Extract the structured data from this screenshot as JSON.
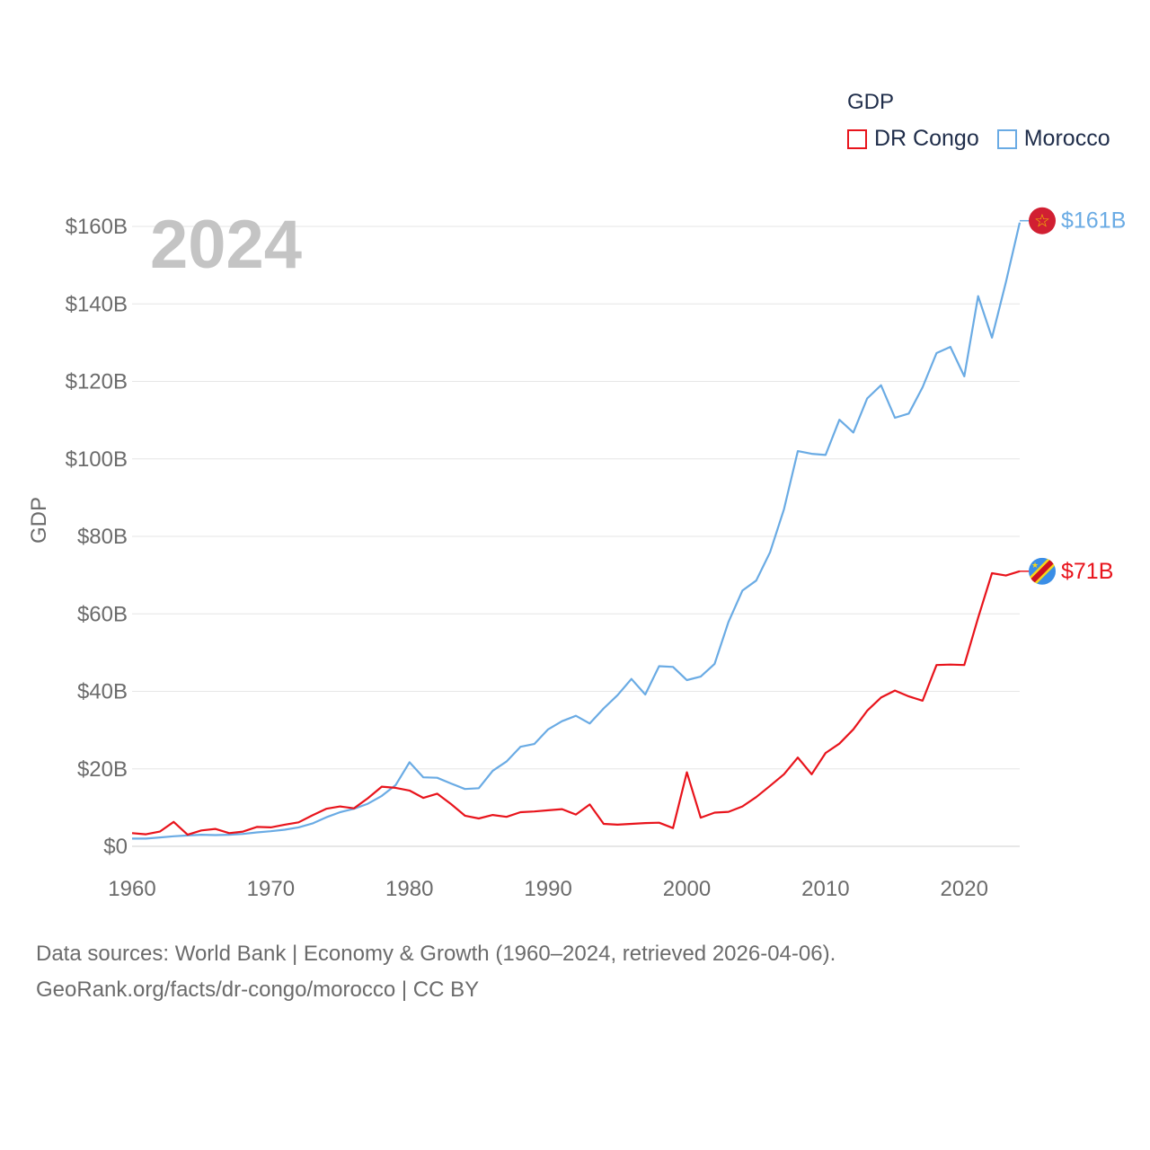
{
  "chart_data": {
    "type": "line",
    "title": "",
    "watermark_label": "2024",
    "ylabel": "GDP",
    "xlabel": "",
    "xlim": [
      1960,
      2024
    ],
    "ylim": [
      0,
      160
    ],
    "y_unit": "billion USD",
    "x_ticks": [
      1960,
      1970,
      1980,
      1990,
      2000,
      2010,
      2020
    ],
    "y_ticks": [
      {
        "value": 0,
        "label": "$0"
      },
      {
        "value": 20,
        "label": "$20B"
      },
      {
        "value": 40,
        "label": "$40B"
      },
      {
        "value": 60,
        "label": "$60B"
      },
      {
        "value": 80,
        "label": "$80B"
      },
      {
        "value": 100,
        "label": "$100B"
      },
      {
        "value": 120,
        "label": "$120B"
      },
      {
        "value": 140,
        "label": "$140B"
      },
      {
        "value": 160,
        "label": "$160B"
      }
    ],
    "grid": true,
    "legend": {
      "title": "GDP",
      "placement": "top-right"
    },
    "x": [
      1960,
      1961,
      1962,
      1963,
      1964,
      1965,
      1966,
      1967,
      1968,
      1969,
      1970,
      1971,
      1972,
      1973,
      1974,
      1975,
      1976,
      1977,
      1978,
      1979,
      1980,
      1981,
      1982,
      1983,
      1984,
      1985,
      1986,
      1987,
      1988,
      1989,
      1990,
      1991,
      1992,
      1993,
      1994,
      1995,
      1996,
      1997,
      1998,
      1999,
      2000,
      2001,
      2002,
      2003,
      2004,
      2005,
      2006,
      2007,
      2008,
      2009,
      2010,
      2011,
      2012,
      2013,
      2014,
      2015,
      2016,
      2017,
      2018,
      2019,
      2020,
      2021,
      2022,
      2023,
      2024
    ],
    "series": [
      {
        "name": "DR Congo",
        "color": "#e8141c",
        "end_label": "$71B",
        "flag": "dr-congo-flag-icon",
        "values": [
          3.4,
          3.1,
          3.8,
          6.3,
          3.0,
          4.1,
          4.5,
          3.4,
          3.8,
          5.0,
          4.9,
          5.6,
          6.2,
          8.0,
          9.7,
          10.3,
          9.8,
          12.4,
          15.4,
          15.1,
          14.4,
          12.5,
          13.6,
          10.9,
          7.9,
          7.2,
          8.1,
          7.6,
          8.8,
          9.0,
          9.3,
          9.6,
          8.2,
          10.8,
          5.8,
          5.6,
          5.8,
          6.0,
          6.1,
          4.7,
          19.1,
          7.4,
          8.7,
          8.9,
          10.3,
          12.7,
          15.6,
          18.6,
          22.9,
          18.6,
          24.1,
          26.5,
          30.2,
          35.0,
          38.4,
          40.2,
          38.7,
          37.6,
          46.8,
          46.9,
          46.8,
          59.0,
          70.5,
          69.9,
          71.0
        ]
      },
      {
        "name": "Morocco",
        "color": "#6aabe4",
        "end_label": "$161B",
        "flag": "morocco-flag-icon",
        "values": [
          2.0,
          2.0,
          2.3,
          2.6,
          2.8,
          3.0,
          2.9,
          3.0,
          3.2,
          3.6,
          3.9,
          4.3,
          4.9,
          5.9,
          7.5,
          8.8,
          9.7,
          11.0,
          13.0,
          15.8,
          21.7,
          17.8,
          17.7,
          16.2,
          14.8,
          15.0,
          19.5,
          21.9,
          25.7,
          26.4,
          30.2,
          32.3,
          33.7,
          31.7,
          35.6,
          39.0,
          43.2,
          39.2,
          46.5,
          46.3,
          42.9,
          43.8,
          47.1,
          57.9,
          66.0,
          68.6,
          75.9,
          87.0,
          102.0,
          101.3,
          101.0,
          110.1,
          106.8,
          115.6,
          119.0,
          110.6,
          111.7,
          118.5,
          127.3,
          128.9,
          121.3,
          142.0,
          131.3,
          145.6,
          161.0
        ]
      }
    ]
  },
  "footer": {
    "line1": "Data sources: World Bank | Economy & Growth (1960–2024, retrieved 2026-04-06).",
    "line2": "GeoRank.org/facts/dr-congo/morocco | CC BY"
  }
}
